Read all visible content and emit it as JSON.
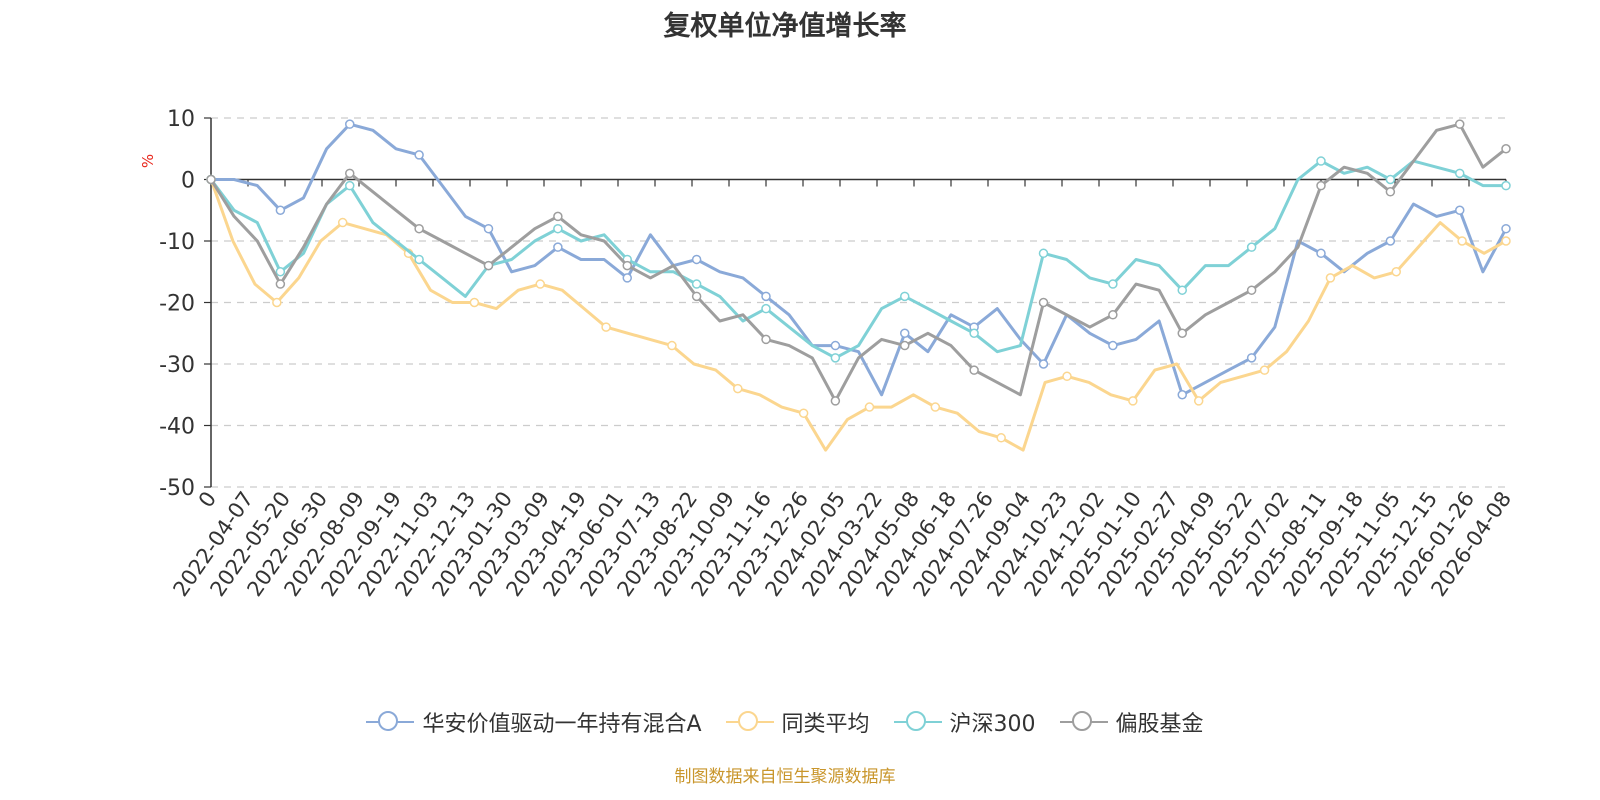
{
  "chart_data": {
    "type": "line",
    "title": "复权单位净值增长率",
    "ylabel": "%",
    "ylim": [
      -50,
      10
    ],
    "yticks": [
      10,
      0,
      -10,
      -20,
      -30,
      -40,
      -50
    ],
    "xlabels": [
      "0",
      "2022-04-07",
      "2022-05-20",
      "2022-06-30",
      "2022-08-09",
      "2022-09-19",
      "2022-11-03",
      "2022-12-13",
      "2023-01-30",
      "2023-03-09",
      "2023-04-19",
      "2023-06-01",
      "2023-07-13",
      "2023-08-22",
      "2023-10-09",
      "2023-11-16",
      "2023-12-26",
      "2024-02-05",
      "2024-03-22",
      "2024-05-08",
      "2024-06-18",
      "2024-07-26",
      "2024-09-04",
      "2024-10-23",
      "2024-12-02",
      "2025-01-10",
      "2025-02-27",
      "2025-04-09",
      "2025-05-22",
      "2025-07-02",
      "2025-08-11",
      "2025-09-18",
      "2025-11-05",
      "2025-12-15",
      "2026-01-26",
      "2026-04-08"
    ],
    "series": [
      {
        "name": "华安价值驱动一年持有混合A",
        "color": "#8aa9d8",
        "values": [
          0,
          0,
          -1,
          -5,
          -3,
          5,
          9,
          8,
          5,
          4,
          -1,
          -6,
          -8,
          -15,
          -14,
          -11,
          -13,
          -13,
          -16,
          -9,
          -14,
          -13,
          -15,
          -16,
          -19,
          -22,
          -27,
          -27,
          -28,
          -35,
          -25,
          -28,
          -22,
          -24,
          -21,
          -26,
          -30,
          -22,
          -25,
          -27,
          -26,
          -23,
          -35,
          -33,
          -31,
          -29,
          -24,
          -10,
          -12,
          -15,
          -12,
          -10,
          -4,
          -6,
          -5,
          -15,
          -8
        ]
      },
      {
        "name": "同类平均",
        "color": "#fbd68f",
        "values": [
          0,
          -10,
          -17,
          -20,
          -16,
          -10,
          -7,
          -8,
          -9,
          -12,
          -18,
          -20,
          -20,
          -21,
          -18,
          -17,
          -18,
          -21,
          -24,
          -25,
          -26,
          -27,
          -30,
          -31,
          -34,
          -35,
          -37,
          -38,
          -44,
          -39,
          -37,
          -37,
          -35,
          -37,
          -38,
          -41,
          -42,
          -44,
          -33,
          -32,
          -33,
          -35,
          -36,
          -31,
          -30,
          -36,
          -33,
          -32,
          -31,
          -28,
          -23,
          -16,
          -14,
          -16,
          -15,
          -11,
          -7,
          -10,
          -12,
          -10
        ]
      },
      {
        "name": "沪深300",
        "color": "#7fd1d6",
        "values": [
          0,
          -5,
          -7,
          -15,
          -12,
          -4,
          -1,
          -7,
          -10,
          -13,
          -16,
          -19,
          -14,
          -13,
          -10,
          -8,
          -10,
          -9,
          -13,
          -15,
          -15,
          -17,
          -19,
          -23,
          -21,
          -24,
          -27,
          -29,
          -27,
          -21,
          -19,
          -21,
          -23,
          -25,
          -28,
          -27,
          -12,
          -13,
          -16,
          -17,
          -13,
          -14,
          -18,
          -14,
          -14,
          -11,
          -8,
          0,
          3,
          1,
          2,
          0,
          3,
          2,
          1,
          -1,
          -1
        ]
      },
      {
        "name": "偏股基金",
        "color": "#9e9e9e",
        "values": [
          0,
          -6,
          -10,
          -17,
          -11,
          -4,
          1,
          -2,
          -5,
          -8,
          -10,
          -12,
          -14,
          -11,
          -8,
          -6,
          -9,
          -10,
          -14,
          -16,
          -14,
          -19,
          -23,
          -22,
          -26,
          -27,
          -29,
          -36,
          -29,
          -26,
          -27,
          -25,
          -27,
          -31,
          -33,
          -35,
          -20,
          -22,
          -24,
          -22,
          -17,
          -18,
          -25,
          -22,
          -20,
          -18,
          -15,
          -11,
          -1,
          2,
          1,
          -2,
          3,
          8,
          9,
          2,
          5
        ]
      }
    ]
  },
  "legend": {
    "s0": "华安价值驱动一年持有混合A",
    "s1": "同类平均",
    "s2": "沪深300",
    "s3": "偏股基金",
    "c0": "#8aa9d8",
    "c1": "#fbd68f",
    "c2": "#7fd1d6",
    "c3": "#9e9e9e"
  },
  "footer": "制图数据来自恒生聚源数据库"
}
